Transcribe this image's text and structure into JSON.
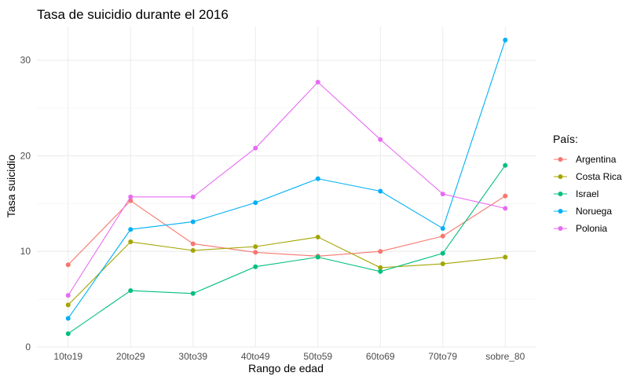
{
  "chart_data": {
    "type": "line",
    "title": "Tasa de suicidio durante el 2016",
    "xlabel": "Rango de edad",
    "ylabel": "Tasa suicidio",
    "categories": [
      "10to19",
      "20to29",
      "30to39",
      "40to49",
      "50to59",
      "60to69",
      "70to79",
      "sobre_80"
    ],
    "ylim": [
      0,
      33.5
    ],
    "yticks": [
      0,
      10,
      20,
      30
    ],
    "grid": true,
    "legend_title": "País:",
    "legend_position": "right",
    "series": [
      {
        "name": "Argentina",
        "color": "#F8766D",
        "values": [
          8.6,
          15.3,
          10.8,
          9.9,
          9.5,
          10.0,
          11.6,
          15.8
        ]
      },
      {
        "name": "Costa Rica",
        "color": "#A3A500",
        "values": [
          4.4,
          11.0,
          10.1,
          10.5,
          11.5,
          8.3,
          8.7,
          9.4
        ]
      },
      {
        "name": "Israel",
        "color": "#00BF7D",
        "values": [
          1.4,
          5.9,
          5.6,
          8.4,
          9.4,
          7.9,
          9.8,
          19.0
        ]
      },
      {
        "name": "Noruega",
        "color": "#00B0F6",
        "values": [
          3.0,
          12.3,
          13.1,
          15.1,
          17.6,
          16.3,
          12.4,
          32.1
        ]
      },
      {
        "name": "Polonia",
        "color": "#E76BF3",
        "values": [
          5.4,
          15.7,
          15.7,
          20.8,
          27.7,
          21.7,
          16.0,
          14.5
        ]
      }
    ]
  }
}
